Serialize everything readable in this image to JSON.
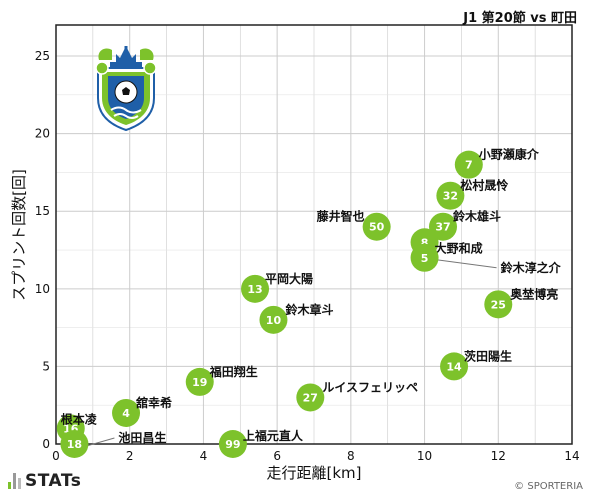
{
  "header": {
    "subtitle": "J1 第20節 vs 町田"
  },
  "footer": {
    "brand": "STATs",
    "credit": "© SPORTERIA"
  },
  "colors": {
    "point": "#7dc22b",
    "grid": "#cccccc",
    "axis": "#222222",
    "bar_green": "#7dc22b",
    "bar_gray": "#999999"
  },
  "logo": {
    "icon": "shonan-bellmare-crest-icon"
  },
  "chart_data": {
    "type": "scatter",
    "xlabel": "走行距離[km]",
    "ylabel": "スプリント回数[回]",
    "xlim": [
      0,
      14
    ],
    "ylim": [
      0,
      27
    ],
    "xticks": [
      0,
      2,
      4,
      6,
      8,
      10,
      12,
      14
    ],
    "yticks": [
      0,
      5,
      10,
      15,
      20,
      25
    ],
    "grid": true,
    "points": [
      {
        "num": "7",
        "name": "小野瀬康介",
        "x": 11.2,
        "y": 18
      },
      {
        "num": "32",
        "name": "松村晟怜",
        "x": 10.7,
        "y": 16
      },
      {
        "num": "37",
        "name": "鈴木雄斗",
        "x": 10.5,
        "y": 14
      },
      {
        "num": "50",
        "name": "藤井智也",
        "x": 8.7,
        "y": 14
      },
      {
        "num": "8",
        "name": "大野和成",
        "x": 10.0,
        "y": 13
      },
      {
        "num": "5",
        "name": "鈴木淳之介",
        "x": 10.0,
        "y": 12
      },
      {
        "num": "25",
        "name": "奥埜博亮",
        "x": 12.0,
        "y": 9
      },
      {
        "num": "13",
        "name": "平岡大陽",
        "x": 5.4,
        "y": 10
      },
      {
        "num": "10",
        "name": "鈴木章斗",
        "x": 5.9,
        "y": 8
      },
      {
        "num": "14",
        "name": "茨田陽生",
        "x": 10.8,
        "y": 5
      },
      {
        "num": "19",
        "name": "福田翔生",
        "x": 3.9,
        "y": 4
      },
      {
        "num": "27",
        "name": "ルイスフェリッペ",
        "x": 6.9,
        "y": 3
      },
      {
        "num": "4",
        "name": "舘幸希",
        "x": 1.9,
        "y": 2
      },
      {
        "num": "16",
        "name": "根本凌",
        "x": 0.4,
        "y": 1
      },
      {
        "num": "18",
        "name": "池田昌生",
        "x": 0.5,
        "y": 0
      },
      {
        "num": "99",
        "name": "上福元直人",
        "x": 4.8,
        "y": 0
      }
    ]
  }
}
